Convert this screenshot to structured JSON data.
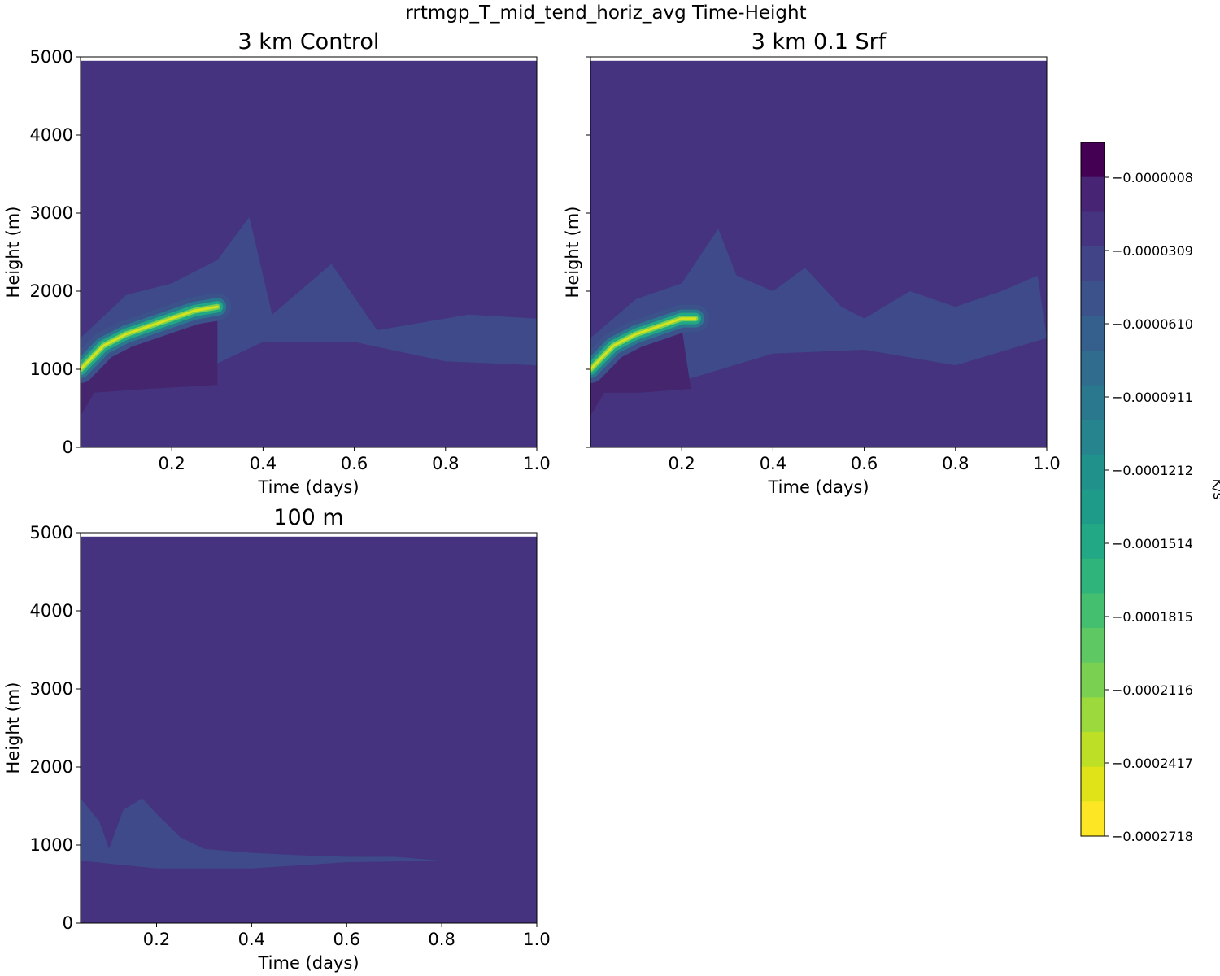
{
  "figure": {
    "title": "rrtmgp_T_mid_tend_horiz_avg Time-Height"
  },
  "colors": {
    "levels": [
      "#440154",
      "#482475",
      "#463480",
      "#414487",
      "#3b528b",
      "#355f8d",
      "#2f6c8e",
      "#2a788e",
      "#25848e",
      "#21918c",
      "#1e9c89",
      "#22a884",
      "#2fb47c",
      "#44bf70",
      "#5ec962",
      "#7ad151",
      "#9bd93c",
      "#bddf26",
      "#dfe318",
      "#fde725"
    ],
    "background": "#45337f",
    "band": "#3e4a89",
    "deep": "#46256f",
    "ridge": [
      "#3b528b",
      "#2a788e",
      "#22a884",
      "#7ad151",
      "#dfe318"
    ]
  },
  "chart_data": [
    {
      "type": "heatmap",
      "title": "3 km Control",
      "xlabel": "Time (days)",
      "ylabel": "Height (m)",
      "xlim": [
        0.0,
        1.0
      ],
      "ylim": [
        0,
        5000
      ],
      "xticks": [
        "0.2",
        "0.4",
        "0.6",
        "0.8",
        "1.0"
      ],
      "yticks": [
        "0",
        "1000",
        "2000",
        "3000",
        "4000",
        "5000"
      ],
      "grid": false,
      "ridge": {
        "x": [
          0.0,
          0.05,
          0.1,
          0.15,
          0.2,
          0.25,
          0.3
        ],
        "height": [
          1000,
          1300,
          1450,
          1550,
          1650,
          1750,
          1800
        ]
      },
      "dark_core": {
        "x": [
          0.0,
          0.3
        ],
        "height_range": [
          800,
          1550
        ]
      },
      "band_top": {
        "x": [
          0.0,
          0.1,
          0.2,
          0.3,
          0.37,
          0.42,
          0.55,
          0.65,
          0.75,
          0.85,
          1.0
        ],
        "height": [
          1400,
          1950,
          2100,
          2400,
          2950,
          1700,
          2350,
          1500,
          1600,
          1700,
          1650
        ]
      },
      "band_bottom": {
        "x": [
          0.0,
          0.2,
          0.4,
          0.6,
          0.8,
          1.0
        ],
        "height": [
          800,
          800,
          1350,
          1350,
          1100,
          1050
        ]
      }
    },
    {
      "type": "heatmap",
      "title": "3 km 0.1 Srf",
      "xlabel": "Time (days)",
      "ylabel": "Height (m)",
      "xlim": [
        0.0,
        1.0
      ],
      "ylim": [
        0,
        5000
      ],
      "xticks": [
        "0.2",
        "0.4",
        "0.6",
        "0.8",
        "1.0"
      ],
      "yticks": [],
      "grid": false,
      "ridge": {
        "x": [
          0.0,
          0.05,
          0.1,
          0.15,
          0.2,
          0.23
        ],
        "height": [
          1000,
          1300,
          1450,
          1550,
          1650,
          1650
        ]
      },
      "dark_core": {
        "x": [
          0.0,
          0.22
        ],
        "height_range": [
          750,
          1500
        ]
      },
      "band_top": {
        "x": [
          0.0,
          0.1,
          0.2,
          0.28,
          0.32,
          0.4,
          0.47,
          0.55,
          0.6,
          0.7,
          0.8,
          0.9,
          0.98
        ],
        "height": [
          1400,
          1900,
          2100,
          2800,
          2200,
          2000,
          2300,
          1800,
          1650,
          2000,
          1800,
          2000,
          2200
        ]
      },
      "band_bottom": {
        "x": [
          0.0,
          0.2,
          0.4,
          0.6,
          0.8,
          1.0
        ],
        "height": [
          800,
          850,
          1200,
          1250,
          1050,
          1400
        ]
      }
    },
    {
      "type": "heatmap",
      "title": "100 m",
      "xlabel": "Time (days)",
      "ylabel": "Height (m)",
      "xlim": [
        0.04,
        1.0
      ],
      "ylim": [
        0,
        5000
      ],
      "xticks": [
        "0.2",
        "0.4",
        "0.6",
        "0.8",
        "1.0"
      ],
      "yticks": [
        "0",
        "1000",
        "2000",
        "3000",
        "4000",
        "5000"
      ],
      "grid": false,
      "band_top": {
        "x": [
          0.04,
          0.08,
          0.1,
          0.13,
          0.17,
          0.2,
          0.25,
          0.3,
          0.4,
          0.5,
          0.6,
          0.7,
          0.8
        ],
        "height": [
          1600,
          1300,
          950,
          1450,
          1600,
          1400,
          1100,
          950,
          900,
          870,
          850,
          850,
          800
        ]
      },
      "band_bottom": {
        "x": [
          0.04,
          0.2,
          0.4,
          0.6,
          0.8
        ],
        "height": [
          800,
          700,
          700,
          780,
          800
        ]
      }
    }
  ],
  "colorbar": {
    "label": "K/s",
    "ticks": [
      "−0.0000008",
      "−0.0000309",
      "−0.0000610",
      "−0.0000911",
      "−0.0001212",
      "−0.0001514",
      "−0.0001815",
      "−0.0002116",
      "−0.0002417",
      "−0.0002718"
    ]
  }
}
